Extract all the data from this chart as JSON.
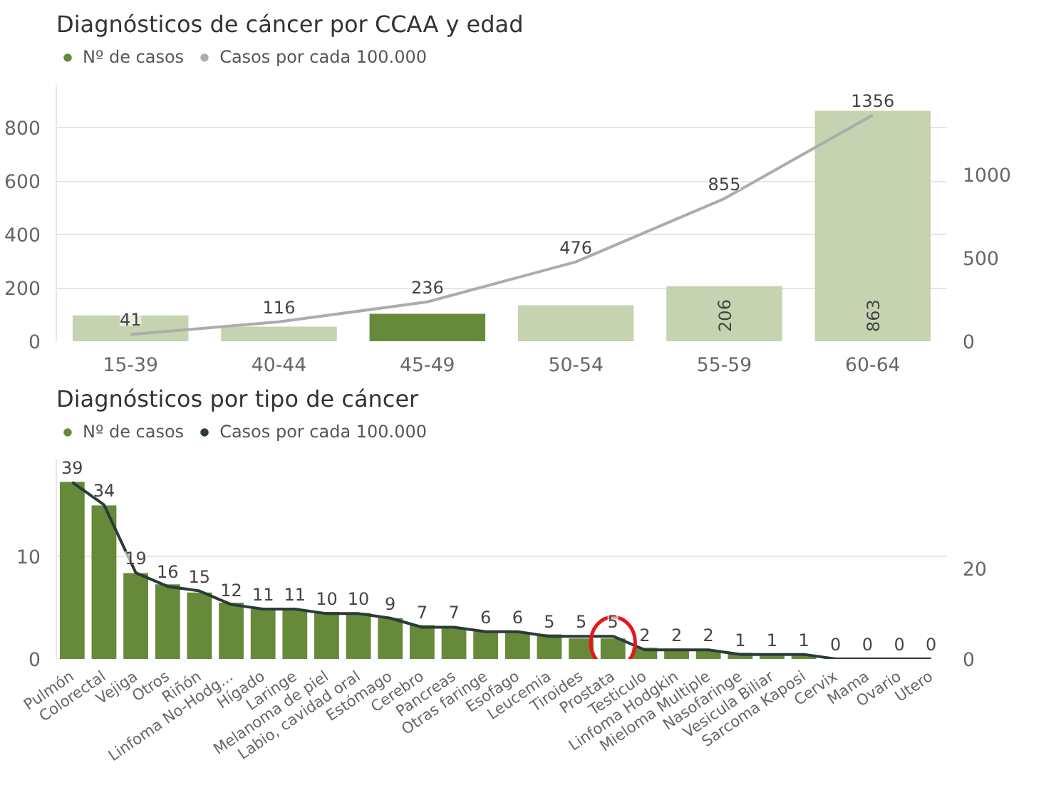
{
  "chart_data": [
    {
      "type": "bar",
      "title": "Diagnósticos de cáncer por CCAA y edad",
      "categories": [
        "15-39",
        "40-44",
        "45-49",
        "50-54",
        "55-59",
        "60-64"
      ],
      "ylim": [
        0,
        960
      ],
      "yticks": [
        0,
        200,
        400,
        600,
        800
      ],
      "y2lim": [
        0,
        1538
      ],
      "y2ticks": [
        0,
        500,
        {
          "value": 1000,
          "label": "1000"
        }
      ],
      "grid": "y",
      "legend": "top left",
      "series": [
        {
          "name": "Nº de casos",
          "color": "#668a3a",
          "colors": [
            "#c5d3b1",
            "#c5d3b1",
            "#668a3a",
            "#c5d3b1",
            "#c5d3b1",
            "#c5d3b1"
          ],
          "values": [
            97,
            55,
            103,
            135,
            206,
            863
          ],
          "value_labels": [
            null,
            null,
            null,
            null,
            "206",
            "863"
          ]
        },
        {
          "type": "line",
          "name": "Casos por cada 100.000",
          "color": "#a9aeab",
          "axis": "y2",
          "values": [
            41,
            116,
            236,
            476,
            855,
            1356
          ],
          "data_labels": true
        }
      ]
    },
    {
      "type": "bar",
      "title": "Diagnósticos por tipo de cáncer",
      "categories": [
        "Pulmón",
        "Colorectal",
        "Vejiga",
        "Otros",
        "Riñón",
        "Linfoma No-Hodg...",
        "Hígado",
        "Laringe",
        "Melanoma de piel",
        "Labio, cavidad oral",
        "Estómago",
        "Cerebro",
        "Pancreas",
        "Otras faringe",
        "Esofago",
        "Leucemia",
        "Tiroides",
        "Prostata",
        "Testiculo",
        "Linfoma Hodgkin",
        "Mieloma Multiple",
        "Nasofaringe",
        "Vesicula Biliar",
        "Sarcoma Kaposi",
        "Cervix",
        "Mama",
        "Ovario",
        "Utero"
      ],
      "ylim": [
        0,
        19.5
      ],
      "yticks": [
        0,
        10
      ],
      "y2lim": [
        0,
        44
      ],
      "y2ticks": [
        0,
        {
          "value": 20,
          "label": "20"
        }
      ],
      "grid": "y",
      "legend": "top left",
      "series": [
        {
          "name": "Nº de casos",
          "color": "#668a3a",
          "values": [
            17.3,
            15.0,
            8.4,
            7.3,
            6.5,
            5.5,
            4.9,
            4.8,
            4.6,
            4.5,
            4.0,
            3.3,
            3.0,
            2.7,
            2.6,
            2.4,
            2.0,
            2.0,
            1.1,
            1.0,
            0.8,
            0.6,
            0.5,
            0.4,
            0,
            0,
            0,
            0
          ]
        },
        {
          "type": "line",
          "name": "Casos por cada 100.000",
          "color": "#2b3a3a",
          "axis": "y2",
          "values": [
            39,
            34,
            19,
            16,
            15,
            12,
            11,
            11,
            10,
            10,
            9,
            7,
            7,
            6,
            6,
            5,
            5,
            5,
            2,
            2,
            2,
            1,
            1,
            1,
            0,
            0,
            0,
            0
          ],
          "data_labels": true
        }
      ]
    }
  ]
}
